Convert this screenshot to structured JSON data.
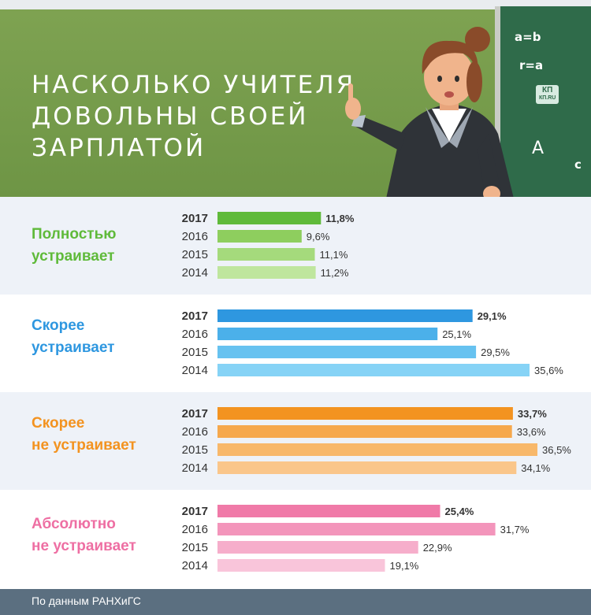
{
  "title": {
    "line1": "НАСКОЛЬКО УЧИТЕЛЯ",
    "line2": "ДОВОЛЬНЫ СВОЕЙ",
    "line3": "ЗАРПЛАТОЙ"
  },
  "chalkboard": {
    "formula1": "a=b",
    "formula2": "r=a",
    "corner1": "A",
    "corner2": "c",
    "logo_line1": "КП",
    "logo_line2": "КП.RU"
  },
  "footer": {
    "source": "По данным РАНХиГС"
  },
  "colors": {
    "header_green": "#7fa352",
    "chalkboard": "#2f6b4a",
    "footer": "#5b6f80",
    "band": "#eef2f8"
  },
  "chart_data": {
    "type": "bar",
    "orientation": "horizontal",
    "unit": "%",
    "years": [
      "2017",
      "2016",
      "2015",
      "2014"
    ],
    "xlim": [
      0,
      36.5
    ],
    "grid": false,
    "groups": [
      {
        "label_line1": "Полностью",
        "label_line2": "устраивает",
        "color": "#5fba3a",
        "bar_colors": [
          "#5fba3a",
          "#8ece5e",
          "#a5da7c",
          "#bfe69e"
        ],
        "values": [
          11.8,
          9.6,
          11.1,
          11.2
        ],
        "value_labels": [
          "11,8%",
          "9,6%",
          "11,1%",
          "11,2%"
        ]
      },
      {
        "label_line1": "Скорее",
        "label_line2": "устраивает",
        "color": "#2e97e0",
        "bar_colors": [
          "#2e97e0",
          "#4bb0ea",
          "#67c2f0",
          "#86d3f6"
        ],
        "values": [
          29.1,
          25.1,
          29.5,
          35.6
        ],
        "value_labels": [
          "29,1%",
          "25,1%",
          "29,5%",
          "35,6%"
        ]
      },
      {
        "label_line1": "Скорее",
        "label_line2": "не устраивает",
        "color": "#f39320",
        "bar_colors": [
          "#f39320",
          "#f6a84c",
          "#f8b86a",
          "#fac68a"
        ],
        "values": [
          33.7,
          33.6,
          36.5,
          34.1
        ],
        "value_labels": [
          "33,7%",
          "33,6%",
          "36,5%",
          "34,1%"
        ]
      },
      {
        "label_line1": "Абсолютно",
        "label_line2": "не устраивает",
        "color": "#ee6fa3",
        "bar_colors": [
          "#f07aa8",
          "#f395bb",
          "#f6aecb",
          "#f9c5da"
        ],
        "values": [
          25.4,
          31.7,
          22.9,
          19.1
        ],
        "value_labels": [
          "25,4%",
          "31,7%",
          "22,9%",
          "19,1%"
        ]
      }
    ]
  }
}
